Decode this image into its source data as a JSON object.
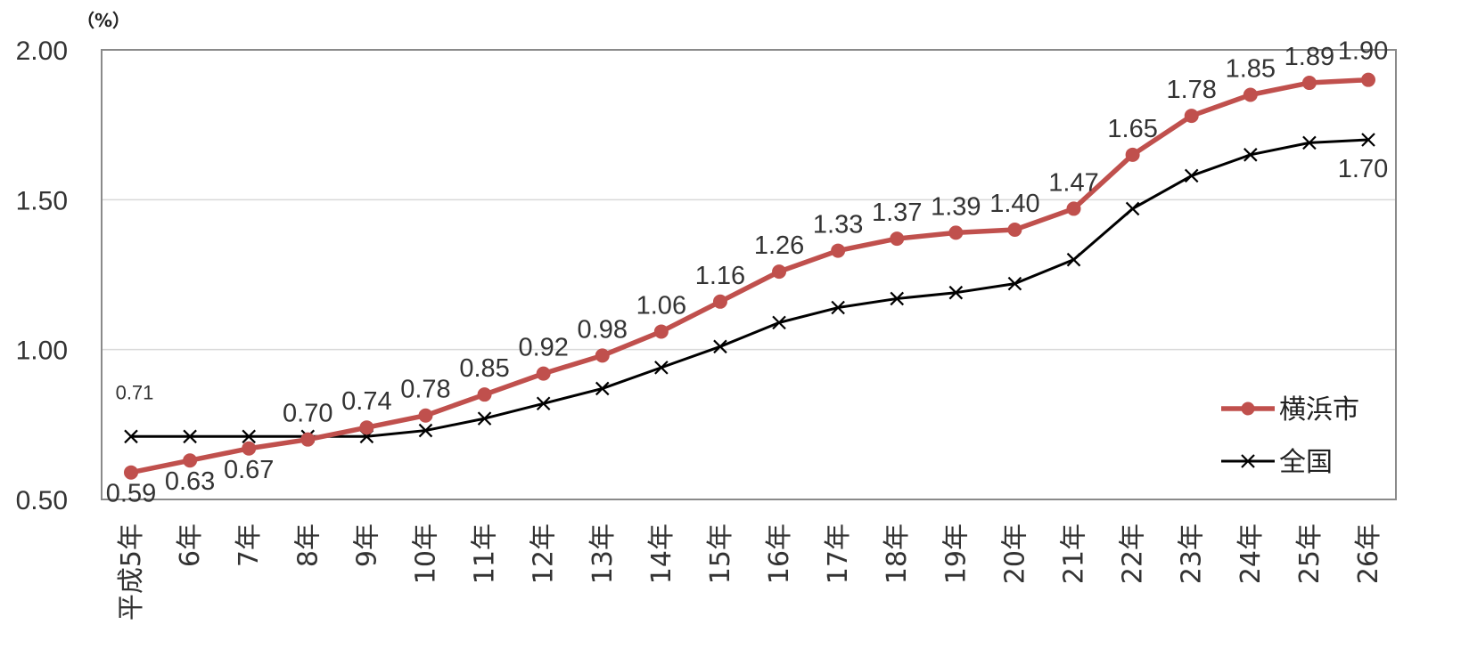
{
  "chart_data": {
    "type": "line",
    "title": "",
    "xlabel": "",
    "ylabel": "",
    "unit_label": "（%）",
    "categories": [
      "平成5年",
      "6年",
      "7年",
      "8年",
      "9年",
      "10年",
      "11年",
      "12年",
      "13年",
      "14年",
      "15年",
      "16年",
      "17年",
      "18年",
      "19年",
      "20年",
      "21年",
      "22年",
      "23年",
      "24年",
      "25年",
      "26年"
    ],
    "ylim": [
      0.5,
      2.0
    ],
    "y_ticks": [
      "0.50",
      "1.00",
      "1.50",
      "2.00"
    ],
    "grid": true,
    "legend_position": "bottom-right",
    "series": [
      {
        "name": "横浜市",
        "color": "#c0504d",
        "marker": "circle",
        "values": [
          0.59,
          0.63,
          0.67,
          0.7,
          0.74,
          0.78,
          0.85,
          0.92,
          0.98,
          1.06,
          1.16,
          1.26,
          1.33,
          1.37,
          1.39,
          1.4,
          1.47,
          1.65,
          1.78,
          1.85,
          1.89,
          1.9
        ],
        "labels": [
          "0.59",
          "0.63",
          "0.67",
          "0.70",
          "0.74",
          "0.78",
          "0.85",
          "0.92",
          "0.98",
          "1.06",
          "1.16",
          "1.26",
          "1.33",
          "1.37",
          "1.39",
          "1.40",
          "1.47",
          "1.65",
          "1.78",
          "1.85",
          "1.89",
          "1.90"
        ]
      },
      {
        "name": "全国",
        "color": "#000000",
        "marker": "x",
        "values": [
          0.71,
          0.71,
          0.71,
          0.71,
          0.71,
          0.73,
          0.77,
          0.82,
          0.87,
          0.94,
          1.01,
          1.09,
          1.14,
          1.17,
          1.19,
          1.22,
          1.3,
          1.47,
          1.58,
          1.65,
          1.69,
          1.7
        ],
        "labels": [
          "0.71",
          "",
          "",
          "",
          "",
          "",
          "",
          "",
          "",
          "",
          "",
          "",
          "",
          "",
          "",
          "",
          "",
          "",
          "",
          "",
          "",
          "1.70"
        ]
      }
    ]
  }
}
